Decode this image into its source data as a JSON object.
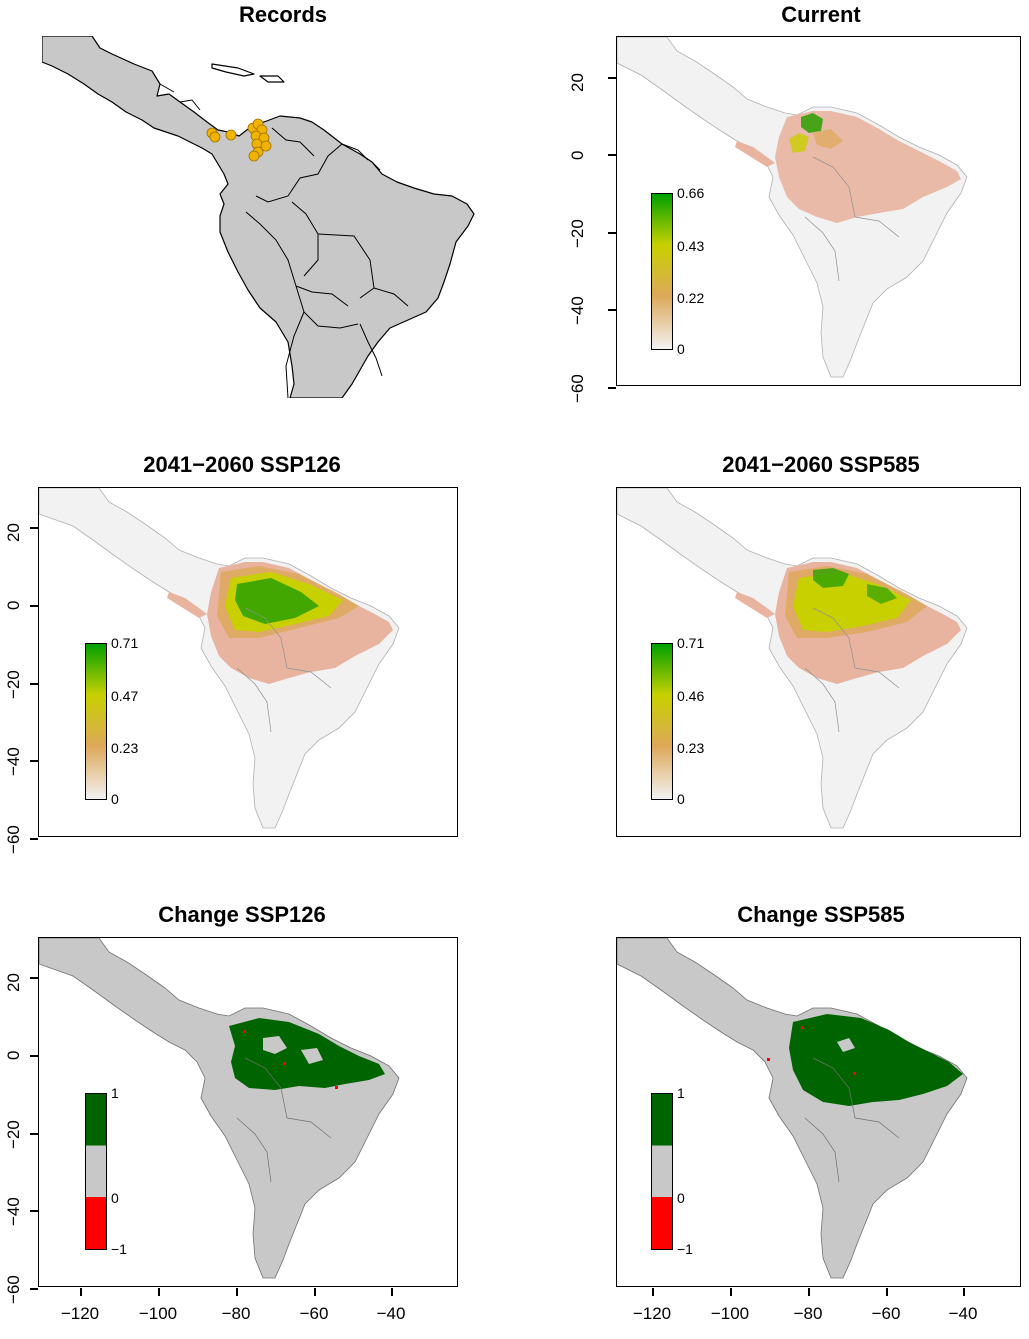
{
  "panels": {
    "records": {
      "title": "Records"
    },
    "current": {
      "title": "Current",
      "legend": [
        "0.66",
        "0.43",
        "0.22",
        "0"
      ]
    },
    "ssp126": {
      "title": "2041−2060 SSP126",
      "legend": [
        "0.71",
        "0.47",
        "0.23",
        "0"
      ]
    },
    "ssp585": {
      "title": "2041−2060 SSP585",
      "legend": [
        "0.71",
        "0.46",
        "0.23",
        "0"
      ]
    },
    "change126": {
      "title": "Change SSP126",
      "legend": [
        "1",
        "0",
        "−1"
      ]
    },
    "change585": {
      "title": "Change SSP585",
      "legend": [
        "1",
        "0",
        "−1"
      ]
    }
  },
  "y_ticks": [
    "20",
    "0",
    "−20",
    "−40",
    "−60"
  ],
  "x_ticks": [
    "−120",
    "−100",
    "−80",
    "−60",
    "−40"
  ],
  "colors": {
    "land": "#c8c8c8",
    "low": "#f2f2f2",
    "pink": "#e8b4a0",
    "orange": "#dda85a",
    "yellow": "#c8d000",
    "green": "#00a000",
    "dark_green": "#006400",
    "red": "#ff0000",
    "points": "#f0b400"
  }
}
